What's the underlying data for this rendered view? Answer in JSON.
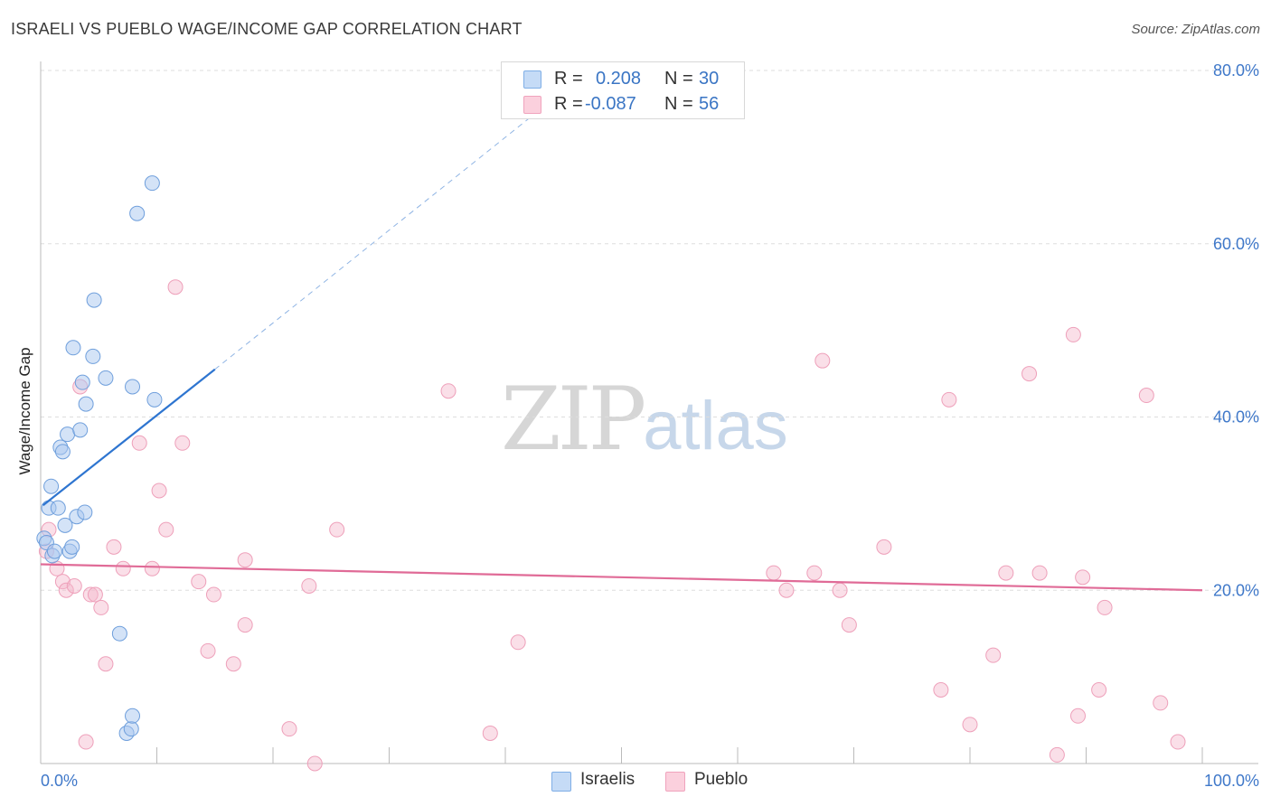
{
  "title": "ISRAELI VS PUEBLO WAGE/INCOME GAP CORRELATION CHART",
  "source": "Source: ZipAtlas.com",
  "watermark": {
    "zip": "ZIP",
    "atlas": "atlas"
  },
  "colors": {
    "israelis": "#a9c8f0",
    "israelis_line": "#2e75d0",
    "pueblo": "#f5b8cc",
    "pueblo_line": "#e06b97",
    "axis_text": "#3f78c9",
    "grid": "#dddddd"
  },
  "stats": {
    "r_label": "R =",
    "n_label": "N =",
    "israelis": {
      "r": "0.208",
      "n": "30"
    },
    "pueblo": {
      "r": "-0.087",
      "n": "56"
    }
  },
  "legend": {
    "israelis": "Israelis",
    "pueblo": "Pueblo"
  },
  "chart_data": {
    "type": "scatter",
    "title": "ISRAELI VS PUEBLO WAGE/INCOME GAP CORRELATION CHART",
    "xlabel": "",
    "ylabel": "Wage/Income Gap",
    "xlim": [
      0,
      100
    ],
    "ylim": [
      0,
      80
    ],
    "x_tick_labels": [
      "0.0%",
      "100.0%"
    ],
    "y_ticks": [
      20,
      40,
      60,
      80
    ],
    "y_tick_labels": [
      "20.0%",
      "40.0%",
      "60.0%",
      "80.0%"
    ],
    "grid": true,
    "series": [
      {
        "name": "Israelis",
        "points": [
          [
            0.3,
            26.0
          ],
          [
            0.5,
            25.5
          ],
          [
            0.7,
            29.5
          ],
          [
            0.9,
            32.0
          ],
          [
            1.0,
            24.0
          ],
          [
            1.2,
            24.5
          ],
          [
            1.5,
            29.5
          ],
          [
            1.7,
            36.5
          ],
          [
            1.9,
            36.0
          ],
          [
            2.1,
            27.5
          ],
          [
            2.3,
            38.0
          ],
          [
            2.5,
            24.5
          ],
          [
            2.7,
            25.0
          ],
          [
            2.8,
            48.0
          ],
          [
            3.1,
            28.5
          ],
          [
            3.4,
            38.5
          ],
          [
            3.6,
            44.0
          ],
          [
            3.8,
            29.0
          ],
          [
            3.9,
            41.5
          ],
          [
            4.5,
            47.0
          ],
          [
            4.6,
            53.5
          ],
          [
            5.6,
            44.5
          ],
          [
            6.8,
            15.0
          ],
          [
            7.4,
            3.5
          ],
          [
            7.8,
            4.0
          ],
          [
            7.9,
            5.5
          ],
          [
            7.9,
            43.5
          ],
          [
            8.3,
            63.5
          ],
          [
            9.6,
            67.0
          ],
          [
            9.8,
            42.0
          ]
        ],
        "trend": {
          "x": [
            0.2,
            15.0
          ],
          "y": [
            29.8,
            45.5
          ],
          "extended_to": [
            43.0,
            75.5
          ]
        }
      },
      {
        "name": "Pueblo",
        "points": [
          [
            0.5,
            24.5
          ],
          [
            0.7,
            27.0
          ],
          [
            1.4,
            22.5
          ],
          [
            1.9,
            21.0
          ],
          [
            2.2,
            20.0
          ],
          [
            2.9,
            20.5
          ],
          [
            3.4,
            43.5
          ],
          [
            3.9,
            2.5
          ],
          [
            4.3,
            19.5
          ],
          [
            4.7,
            19.5
          ],
          [
            5.2,
            18.0
          ],
          [
            5.6,
            11.5
          ],
          [
            6.3,
            25.0
          ],
          [
            7.1,
            22.5
          ],
          [
            8.5,
            37.0
          ],
          [
            9.6,
            22.5
          ],
          [
            10.2,
            31.5
          ],
          [
            10.8,
            27.0
          ],
          [
            11.6,
            55.0
          ],
          [
            12.2,
            37.0
          ],
          [
            13.6,
            21.0
          ],
          [
            14.4,
            13.0
          ],
          [
            14.9,
            19.5
          ],
          [
            16.6,
            11.5
          ],
          [
            17.6,
            16.0
          ],
          [
            17.6,
            23.5
          ],
          [
            21.4,
            4.0
          ],
          [
            23.1,
            20.5
          ],
          [
            23.6,
            0.0
          ],
          [
            25.5,
            27.0
          ],
          [
            35.1,
            43.0
          ],
          [
            38.7,
            3.5
          ],
          [
            41.1,
            14.0
          ],
          [
            63.1,
            22.0
          ],
          [
            64.2,
            20.0
          ],
          [
            66.6,
            22.0
          ],
          [
            67.3,
            46.5
          ],
          [
            68.8,
            20.0
          ],
          [
            69.6,
            16.0
          ],
          [
            72.6,
            25.0
          ],
          [
            77.5,
            8.5
          ],
          [
            78.2,
            42.0
          ],
          [
            80.0,
            4.5
          ],
          [
            82.0,
            12.5
          ],
          [
            83.1,
            22.0
          ],
          [
            85.1,
            45.0
          ],
          [
            86.0,
            22.0
          ],
          [
            87.5,
            1.0
          ],
          [
            88.9,
            49.5
          ],
          [
            89.3,
            5.5
          ],
          [
            89.7,
            21.5
          ],
          [
            91.1,
            8.5
          ],
          [
            91.6,
            18.0
          ],
          [
            95.2,
            42.5
          ],
          [
            96.4,
            7.0
          ],
          [
            97.9,
            2.5
          ]
        ],
        "trend": {
          "x": [
            0.0,
            100.0
          ],
          "y": [
            23.0,
            20.0
          ]
        }
      }
    ]
  }
}
